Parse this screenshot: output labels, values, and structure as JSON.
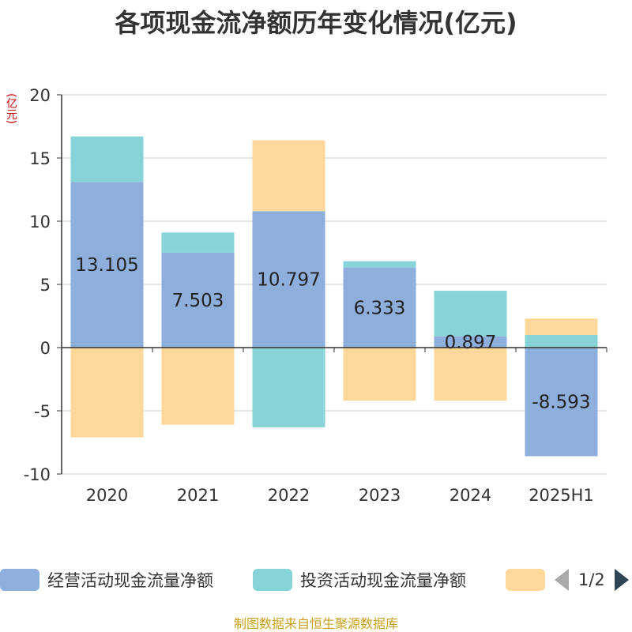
{
  "title": "各项现金流净额历年变化情况(亿元)",
  "unit_label": "(亿元)",
  "legend": {
    "items": [
      {
        "label": "经营活动现金流量净额",
        "color": "#8eaedb"
      },
      {
        "label": "投资活动现金流量净额",
        "color": "#86d4d8"
      },
      {
        "label": "",
        "color": "#fdd89a"
      }
    ],
    "pager": "1/2"
  },
  "source": "制图数据来自恒生聚源数据库",
  "chart_data": {
    "type": "bar",
    "stacked": true,
    "categories": [
      "2020",
      "2021",
      "2022",
      "2023",
      "2024",
      "2025H1"
    ],
    "ylim": [
      -10,
      20
    ],
    "yticks": [
      -10,
      -5,
      0,
      5,
      10,
      15,
      20
    ],
    "grid": true,
    "legend_position": "bottom",
    "series": [
      {
        "name": "经营活动现金流量净额",
        "color": "#8eaedb",
        "values": [
          13.105,
          7.503,
          10.797,
          6.333,
          0.897,
          -8.593
        ],
        "labels": [
          "13.105",
          "7.503",
          "10.797",
          "6.333",
          "0.897",
          "-8.593"
        ]
      },
      {
        "name": "投资活动现金流量净额",
        "color": "#86d4d8",
        "values": [
          3.6,
          1.6,
          -6.3,
          0.5,
          3.6,
          1.0
        ]
      },
      {
        "color": "#fdd89a",
        "values": [
          -7.1,
          -6.1,
          5.6,
          -4.2,
          -4.2,
          1.3
        ]
      }
    ]
  }
}
